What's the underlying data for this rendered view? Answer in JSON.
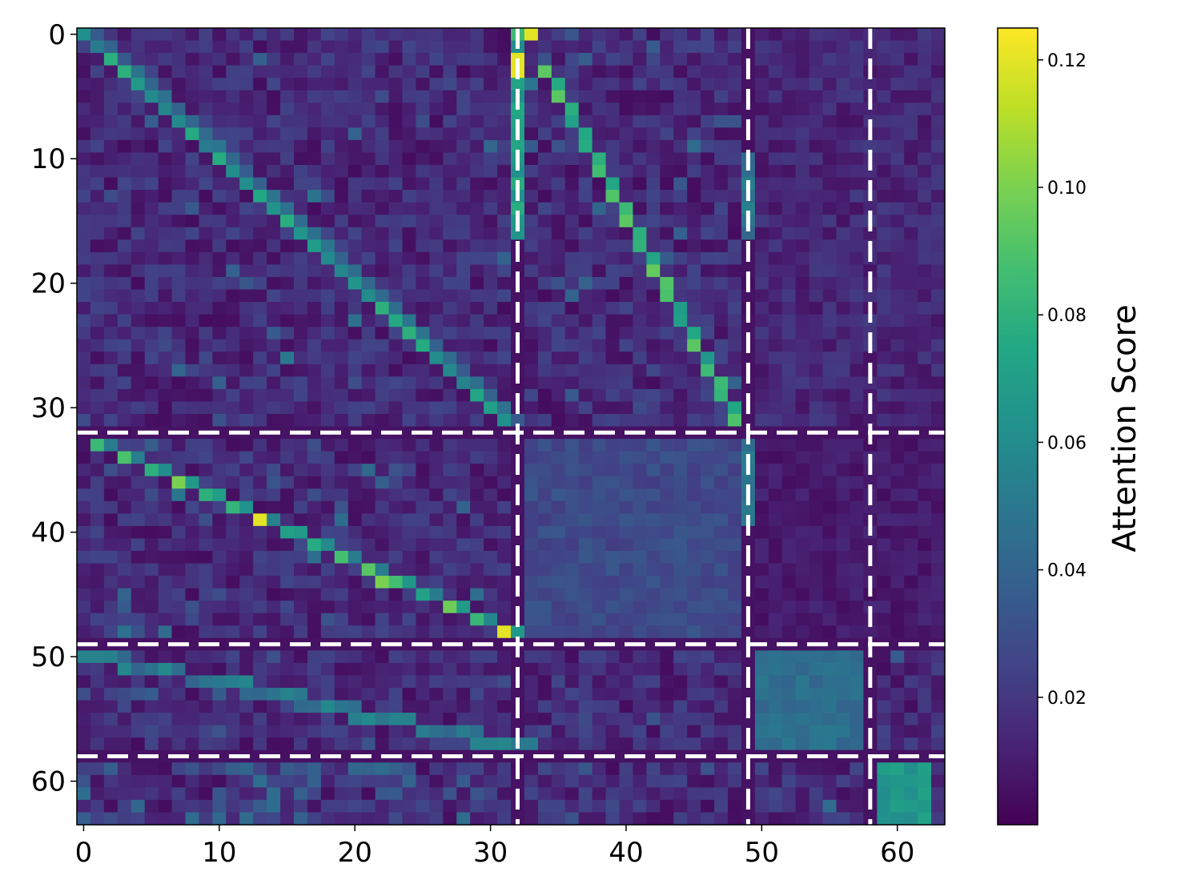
{
  "chart_data": {
    "type": "heatmap",
    "title": "",
    "xlabel": "",
    "ylabel": "",
    "size": 64,
    "xlim": [
      0,
      63
    ],
    "ylim": [
      63,
      0
    ],
    "x_ticks": [
      0,
      10,
      20,
      30,
      40,
      50,
      60
    ],
    "y_ticks": [
      0,
      10,
      20,
      30,
      40,
      50,
      60
    ],
    "x_tick_labels": [
      "0",
      "10",
      "20",
      "30",
      "40",
      "50",
      "60"
    ],
    "y_tick_labels": [
      "0",
      "10",
      "20",
      "30",
      "40",
      "50",
      "60"
    ],
    "colormap": "viridis",
    "colorbar": {
      "label": "Attention Score",
      "range": [
        0.0,
        0.125
      ],
      "ticks": [
        0.02,
        0.04,
        0.06,
        0.08,
        0.1,
        0.12
      ],
      "tick_labels": [
        "0.02",
        "0.04",
        "0.06",
        "0.08",
        "0.10",
        "0.12"
      ]
    },
    "separators": [
      32.5,
      49.5,
      58.5
    ],
    "separator_style": "white dashed",
    "values_note_shape": "64x64 matrix",
    "blocks": [
      {
        "rows": [
          0,
          31
        ],
        "diag_col_offset": 1,
        "diag_value": 0.07,
        "background": 0.018
      },
      {
        "rows": [
          0,
          31
        ],
        "diag_col_start": 33,
        "diag_col_end": 49,
        "diag_value": 0.09
      },
      {
        "rows": [
          33,
          48
        ],
        "diag_col_offset": -32,
        "diag_value": 0.09
      },
      {
        "rows": [
          33,
          48
        ],
        "cols": [
          33,
          48
        ],
        "background": 0.028
      },
      {
        "rows": [
          50,
          57
        ],
        "cols": [
          50,
          57
        ],
        "background": 0.045
      },
      {
        "rows": [
          59,
          63
        ],
        "cols": [
          59,
          63
        ],
        "background": 0.065
      }
    ],
    "column_32_peak": {
      "rows": [
        0,
        4
      ],
      "value": 0.12
    }
  }
}
